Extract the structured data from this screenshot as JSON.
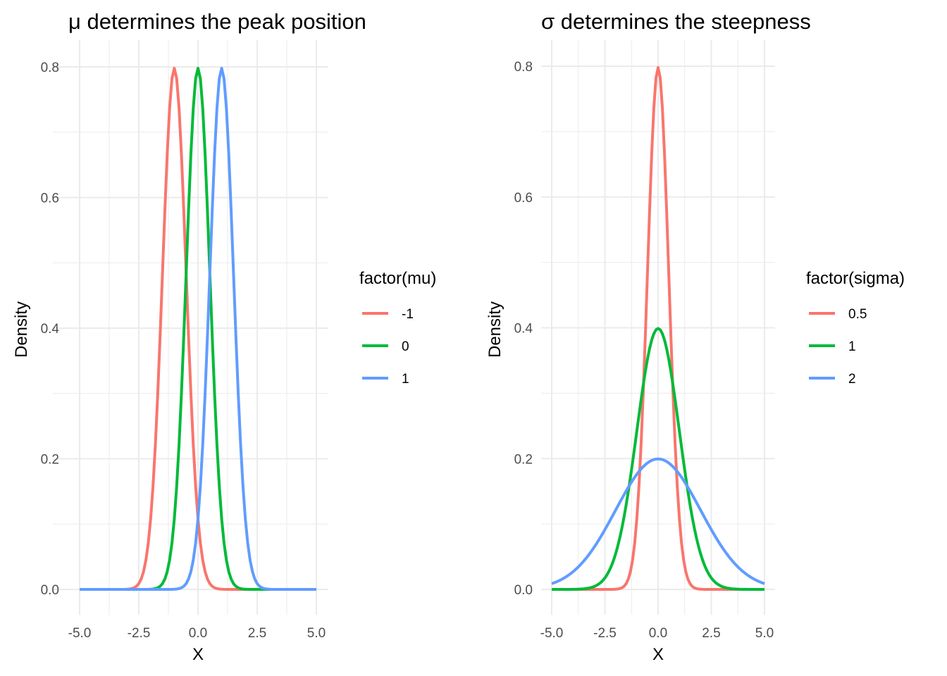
{
  "chart_data": [
    {
      "type": "line",
      "title": "μ determines the peak position",
      "xlabel": "X",
      "ylabel": "Density",
      "xlim": [
        -5,
        5
      ],
      "ylim": [
        0,
        0.8
      ],
      "x_ticks": [
        -5,
        -2.5,
        0,
        2.5,
        5
      ],
      "x_tick_labels": [
        "-5.0",
        "-2.5",
        "0.0",
        "2.5",
        "5.0"
      ],
      "y_ticks": [
        0,
        0.2,
        0.4,
        0.6,
        0.8
      ],
      "y_tick_labels": [
        "0.0",
        "0.2",
        "0.4",
        "0.6",
        "0.8"
      ],
      "grid": true,
      "legend": {
        "title": "factor(mu)",
        "placement": "right",
        "entries": [
          "-1",
          "0",
          "1"
        ]
      },
      "series": [
        {
          "name": "-1",
          "distribution": "normal",
          "mu": -1,
          "sigma": 0.5,
          "peak": 0.798,
          "color": "#F8766D"
        },
        {
          "name": "0",
          "distribution": "normal",
          "mu": 0,
          "sigma": 0.5,
          "peak": 0.798,
          "color": "#00BA38"
        },
        {
          "name": "1",
          "distribution": "normal",
          "mu": 1,
          "sigma": 0.5,
          "peak": 0.798,
          "color": "#619CFF"
        }
      ]
    },
    {
      "type": "line",
      "title": "σ determines the steepness",
      "xlabel": "X",
      "ylabel": "Density",
      "xlim": [
        -5,
        5
      ],
      "ylim": [
        0,
        0.8
      ],
      "x_ticks": [
        -5,
        -2.5,
        0,
        2.5,
        5
      ],
      "x_tick_labels": [
        "-5.0",
        "-2.5",
        "0.0",
        "2.5",
        "5.0"
      ],
      "y_ticks": [
        0,
        0.2,
        0.4,
        0.6,
        0.8
      ],
      "y_tick_labels": [
        "0.0",
        "0.2",
        "0.4",
        "0.6",
        "0.8"
      ],
      "grid": true,
      "legend": {
        "title": "factor(sigma)",
        "placement": "right",
        "entries": [
          "0.5",
          "1",
          "2"
        ]
      },
      "series": [
        {
          "name": "0.5",
          "distribution": "normal",
          "mu": 0,
          "sigma": 0.5,
          "peak": 0.798,
          "color": "#F8766D"
        },
        {
          "name": "1",
          "distribution": "normal",
          "mu": 0,
          "sigma": 1,
          "peak": 0.399,
          "color": "#00BA38"
        },
        {
          "name": "2",
          "distribution": "normal",
          "mu": 0,
          "sigma": 2,
          "peak": 0.199,
          "color": "#619CFF"
        }
      ]
    }
  ]
}
